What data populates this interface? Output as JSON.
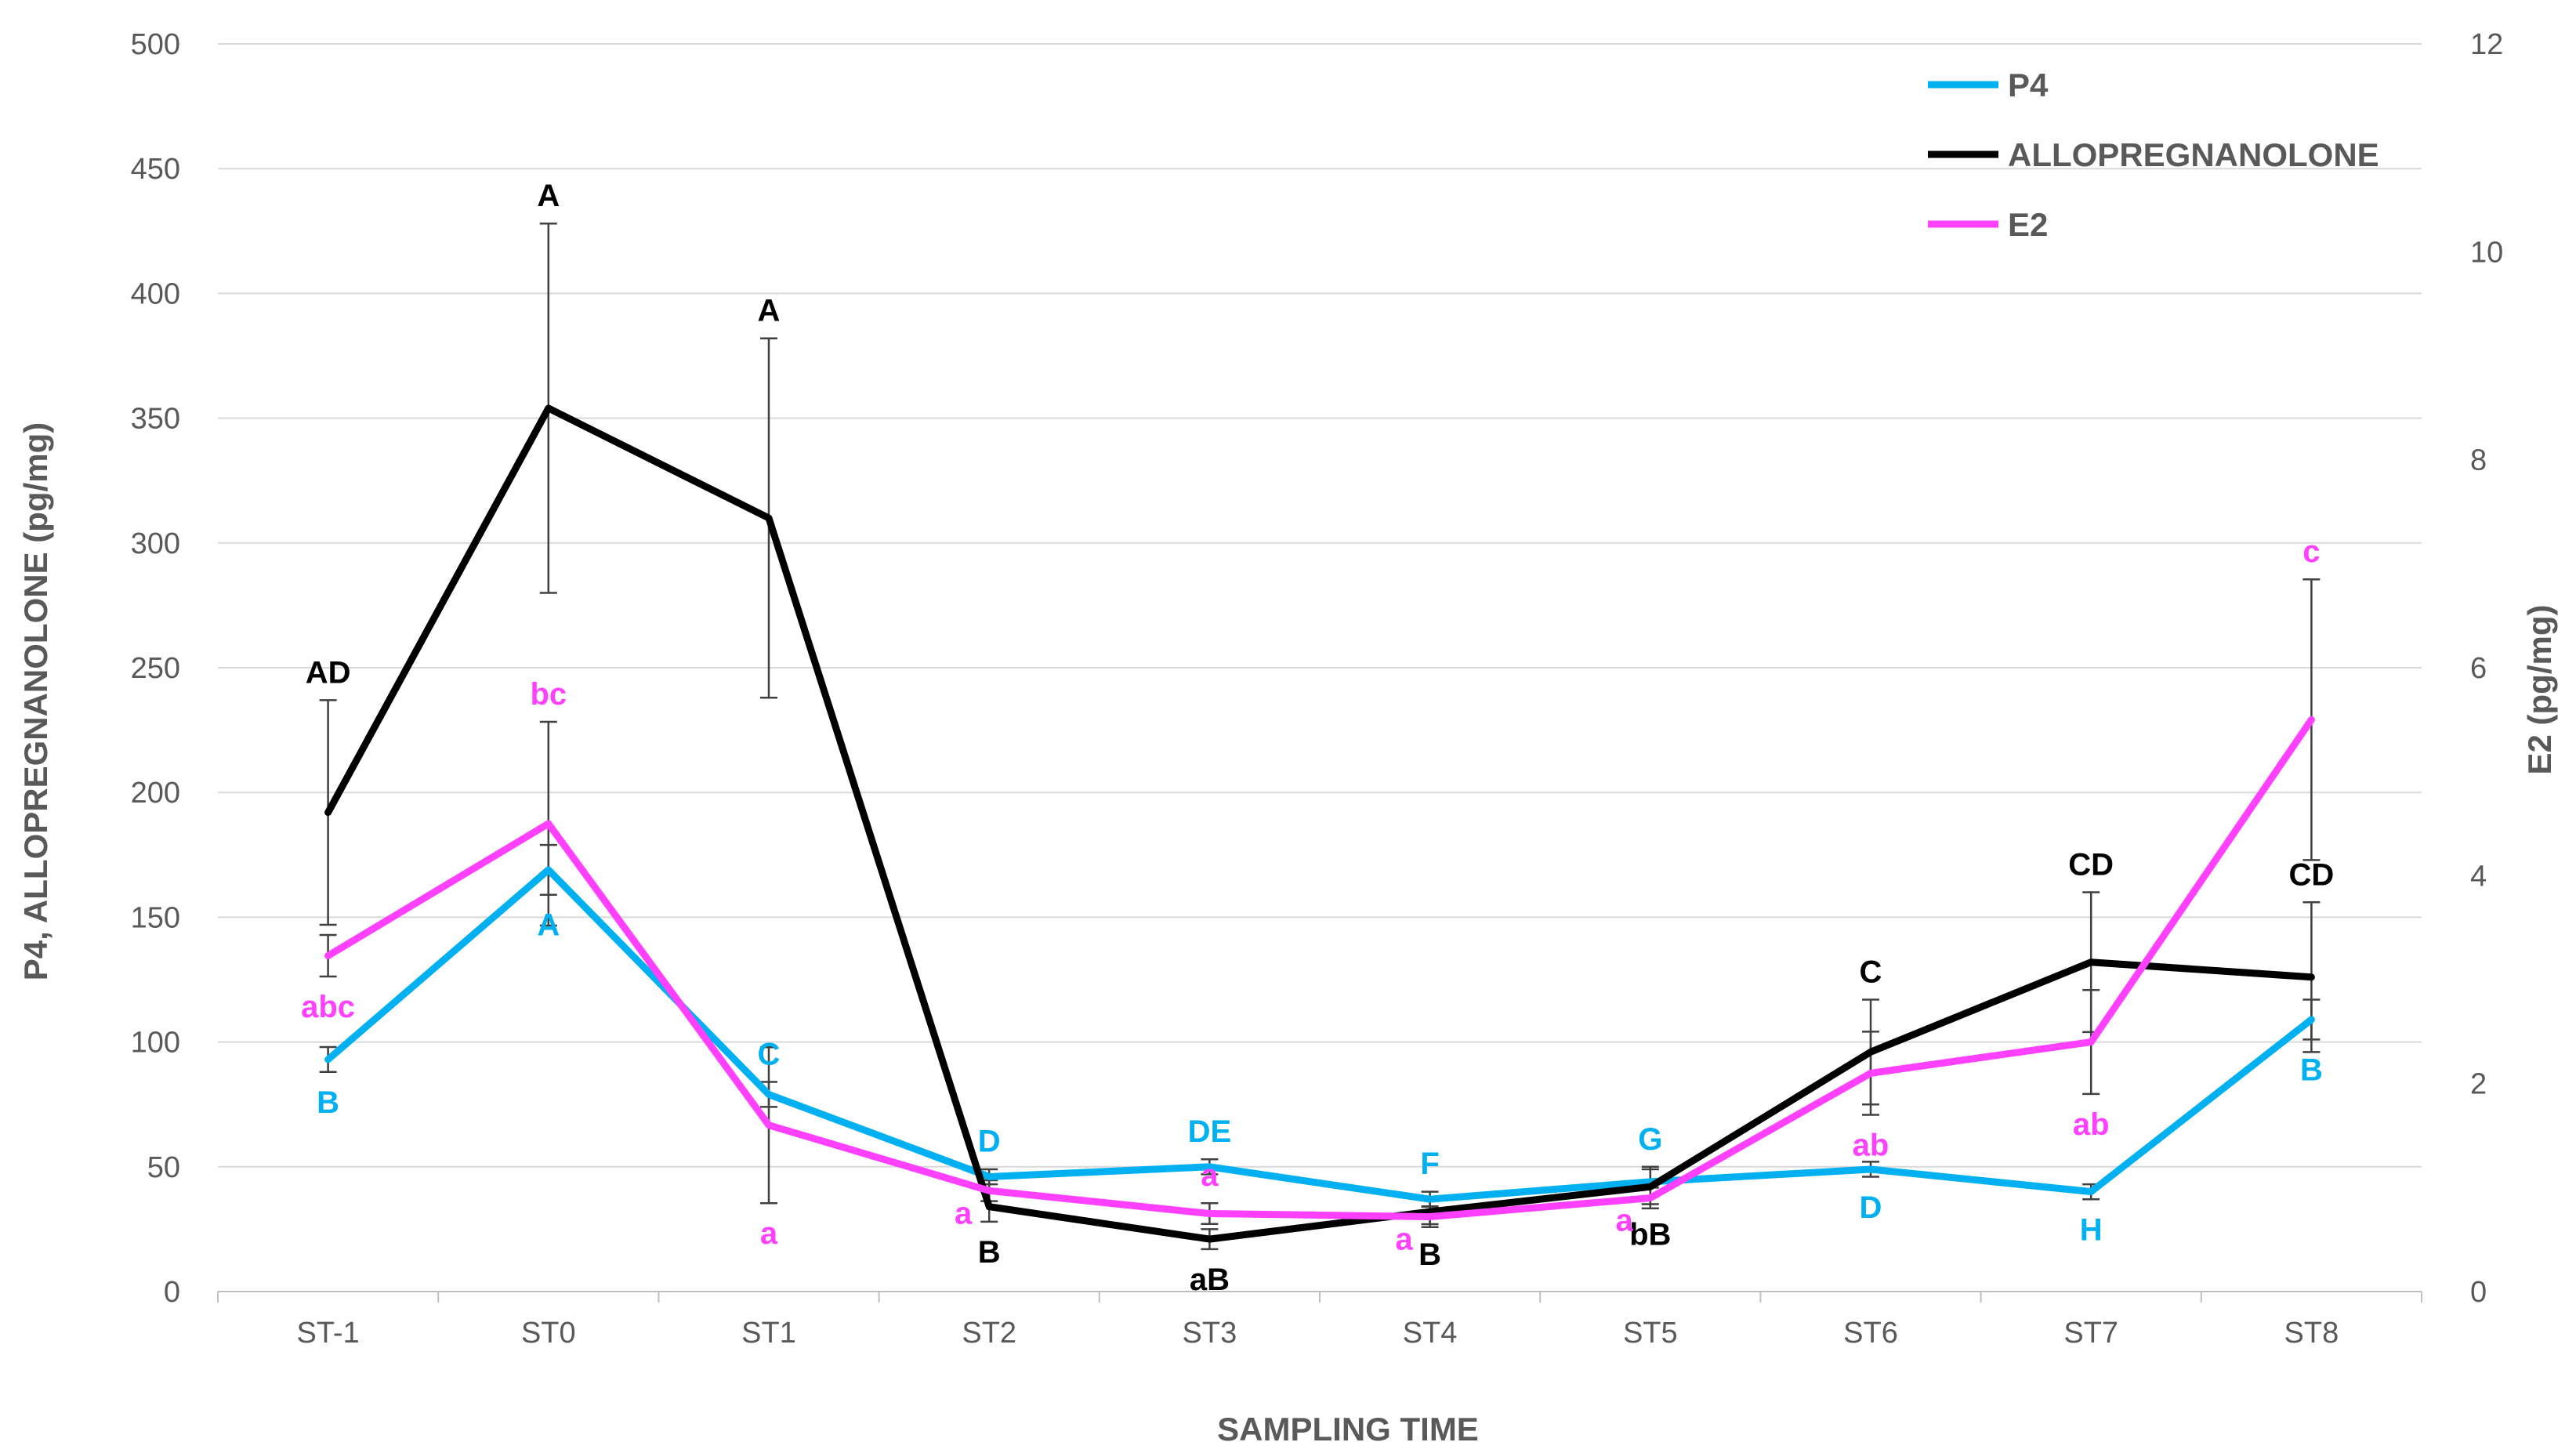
{
  "chart_data": {
    "type": "line",
    "categories": [
      "ST-1",
      "ST0",
      "ST1",
      "ST2",
      "ST3",
      "ST4",
      "ST5",
      "ST6",
      "ST7",
      "ST8"
    ],
    "xlabel": "SAMPLING TIME",
    "ylabel_left": "P4, ALLOPREGNANOLONE (pg/mg)",
    "ylabel_right": "E2 (pg/mg)",
    "ylim_left": [
      0,
      500
    ],
    "ylim_right": [
      0,
      12
    ],
    "yticks_left": [
      "0",
      "50",
      "100",
      "150",
      "200",
      "250",
      "300",
      "350",
      "400",
      "450",
      "500"
    ],
    "yticks_right": [
      "0",
      "2",
      "4",
      "6",
      "8",
      "10",
      "12"
    ],
    "grid": true,
    "legend_position": "top-right",
    "series": [
      {
        "name": "P4",
        "axis": "left",
        "color": "#00b0f0",
        "values": [
          93,
          169,
          79,
          46,
          50,
          37,
          44,
          49,
          40,
          109
        ],
        "errors": [
          5,
          10,
          5,
          3,
          3,
          3,
          6,
          3,
          3,
          8
        ],
        "labels": [
          "B",
          "A",
          "C",
          "D",
          "DE",
          "F",
          "G",
          "D",
          "H",
          "B"
        ],
        "label_side": [
          "below",
          "below",
          "above",
          "above",
          "above",
          "above",
          "above",
          "below",
          "below",
          "below"
        ]
      },
      {
        "name": "ALLOPREGNANOLONE",
        "axis": "left",
        "color": "#000000",
        "values": [
          192,
          354,
          310,
          34,
          21,
          32,
          42,
          96,
          132,
          126
        ],
        "errors": [
          45,
          74,
          72,
          6,
          4,
          5,
          7,
          21,
          28,
          30
        ],
        "labels": [
          "AD",
          "A",
          "A",
          "B",
          "aB",
          "B",
          "bB",
          "C",
          "CD",
          "CD"
        ],
        "label_side": [
          "above",
          "above",
          "above",
          "below",
          "below",
          "below",
          "below",
          "above",
          "above",
          "above"
        ]
      },
      {
        "name": "E2",
        "axis": "right",
        "color": "#ff40ff",
        "values": [
          3.23,
          4.5,
          1.6,
          0.97,
          0.75,
          0.72,
          0.9,
          2.1,
          2.4,
          5.5
        ],
        "errors": [
          0.2,
          0.98,
          0.75,
          0.1,
          0.1,
          0.1,
          0.1,
          0.4,
          0.5,
          1.35
        ],
        "labels": [
          "abc",
          "bc",
          "a",
          "a",
          "a",
          "a",
          "a",
          "ab",
          "ab",
          "c"
        ],
        "label_side": [
          "below",
          "above",
          "below",
          "left",
          "above",
          "left",
          "left",
          "below",
          "below",
          "above"
        ]
      }
    ]
  }
}
